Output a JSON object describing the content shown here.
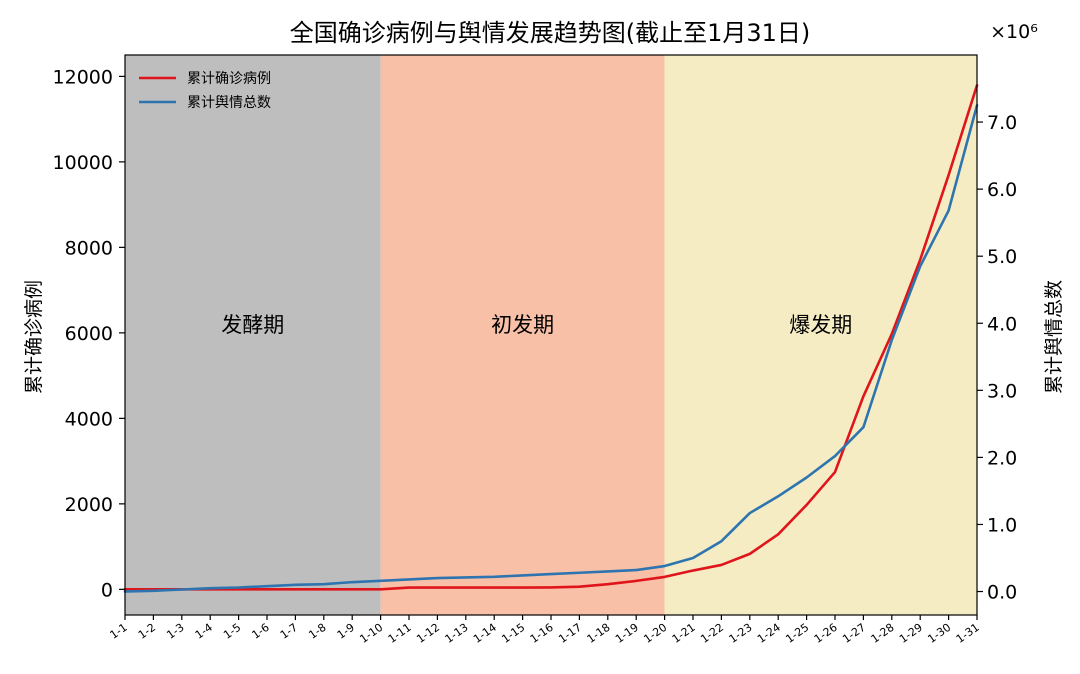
{
  "chart_data": {
    "type": "line",
    "title": "全国确诊病例与舆情发展趋势图(截止至1月31日)",
    "xlabel": "",
    "ylabel_left": "累计确诊病例",
    "ylabel_right": "累计舆情总数",
    "right_axis_multiplier": "×10⁶",
    "categories": [
      "1-1",
      "1-2",
      "1-3",
      "1-4",
      "1-5",
      "1-6",
      "1-7",
      "1-8",
      "1-9",
      "1-10",
      "1-11",
      "1-12",
      "1-13",
      "1-14",
      "1-15",
      "1-16",
      "1-17",
      "1-18",
      "1-19",
      "1-20",
      "1-21",
      "1-22",
      "1-23",
      "1-24",
      "1-25",
      "1-26",
      "1-27",
      "1-28",
      "1-29",
      "1-30",
      "1-31"
    ],
    "y_left_lim": [
      -600,
      12500
    ],
    "y_left_ticks": [
      0,
      2000,
      4000,
      6000,
      8000,
      10000,
      12000
    ],
    "y_left_tick_labels": [
      "0",
      "2000",
      "4000",
      "6000",
      "8000",
      "10000",
      "12000"
    ],
    "y_right_lim": [
      -0.35,
      8.0
    ],
    "y_right_ticks": [
      0.0,
      1.0,
      2.0,
      3.0,
      4.0,
      5.0,
      6.0,
      7.0
    ],
    "y_right_tick_labels": [
      "0.0",
      "1.0",
      "2.0",
      "3.0",
      "4.0",
      "5.0",
      "6.0",
      "7.0"
    ],
    "grid": false,
    "legend_position": "top-left",
    "phases": [
      {
        "label": "发酵期",
        "from": "1-1",
        "to": "1-10",
        "color": "#bfbebf"
      },
      {
        "label": "初发期",
        "from": "1-10",
        "to": "1-20",
        "color": "#f9c0a8"
      },
      {
        "label": "爆发期",
        "from": "1-20",
        "to": "1-31",
        "color": "#f5ecc4"
      }
    ],
    "series": [
      {
        "name": "累计确诊病例",
        "axis": "left",
        "color": "#e0151b",
        "values": [
          0,
          0,
          0,
          0,
          0,
          0,
          0,
          0,
          0,
          0,
          41,
          41,
          41,
          41,
          41,
          45,
          62,
          121,
          198,
          291,
          440,
          571,
          830,
          1287,
          1975,
          2744,
          4515,
          5974,
          7711,
          9692,
          11791
        ]
      },
      {
        "name": "累计舆情总数",
        "axis": "right",
        "color": "#2e75b0",
        "values": [
          0.0,
          0.01,
          0.03,
          0.05,
          0.06,
          0.08,
          0.1,
          0.11,
          0.14,
          0.16,
          0.18,
          0.2,
          0.21,
          0.22,
          0.24,
          0.26,
          0.28,
          0.3,
          0.32,
          0.38,
          0.5,
          0.75,
          1.17,
          1.42,
          1.7,
          2.02,
          2.45,
          3.75,
          4.85,
          5.68,
          7.25
        ]
      }
    ]
  }
}
